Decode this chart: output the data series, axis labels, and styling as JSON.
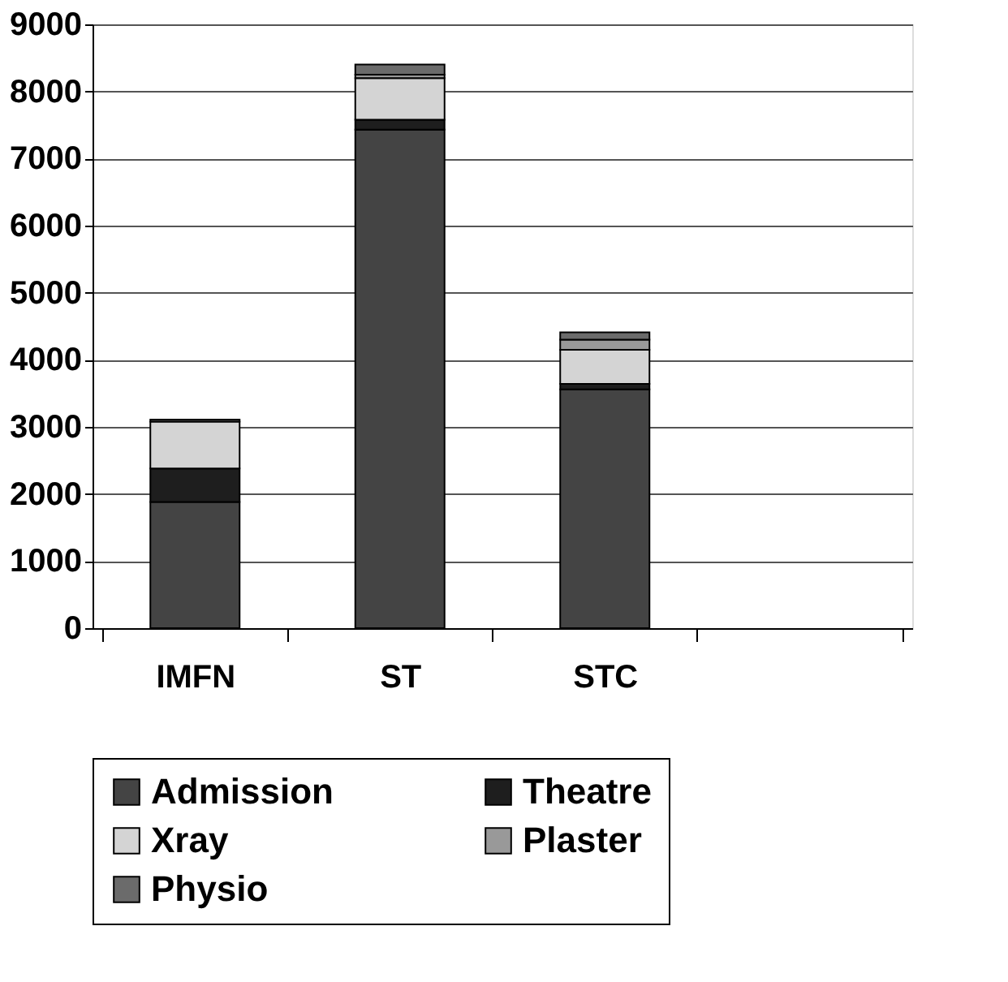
{
  "chart_data": {
    "type": "bar",
    "stacked": true,
    "categories": [
      "IMFN",
      "ST",
      "STC",
      null
    ],
    "series": [
      {
        "name": "Admission",
        "color": "#444444",
        "values": [
          1880,
          7430,
          3560,
          null
        ]
      },
      {
        "name": "Theatre",
        "color": "#1e1e1e",
        "values": [
          500,
          150,
          80,
          null
        ]
      },
      {
        "name": "Xray",
        "color": "#d4d4d4",
        "values": [
          700,
          620,
          510,
          null
        ]
      },
      {
        "name": "Plaster",
        "color": "#999999",
        "values": [
          null,
          50,
          150,
          null
        ]
      },
      {
        "name": "Physio",
        "color": "#6b6b6b",
        "values": [
          30,
          150,
          110,
          null
        ]
      }
    ],
    "ylim": [
      0,
      9000
    ],
    "yticks": [
      0,
      1000,
      2000,
      3000,
      4000,
      5000,
      6000,
      7000,
      8000,
      9000
    ],
    "grid": "y",
    "legend": "bottom"
  }
}
